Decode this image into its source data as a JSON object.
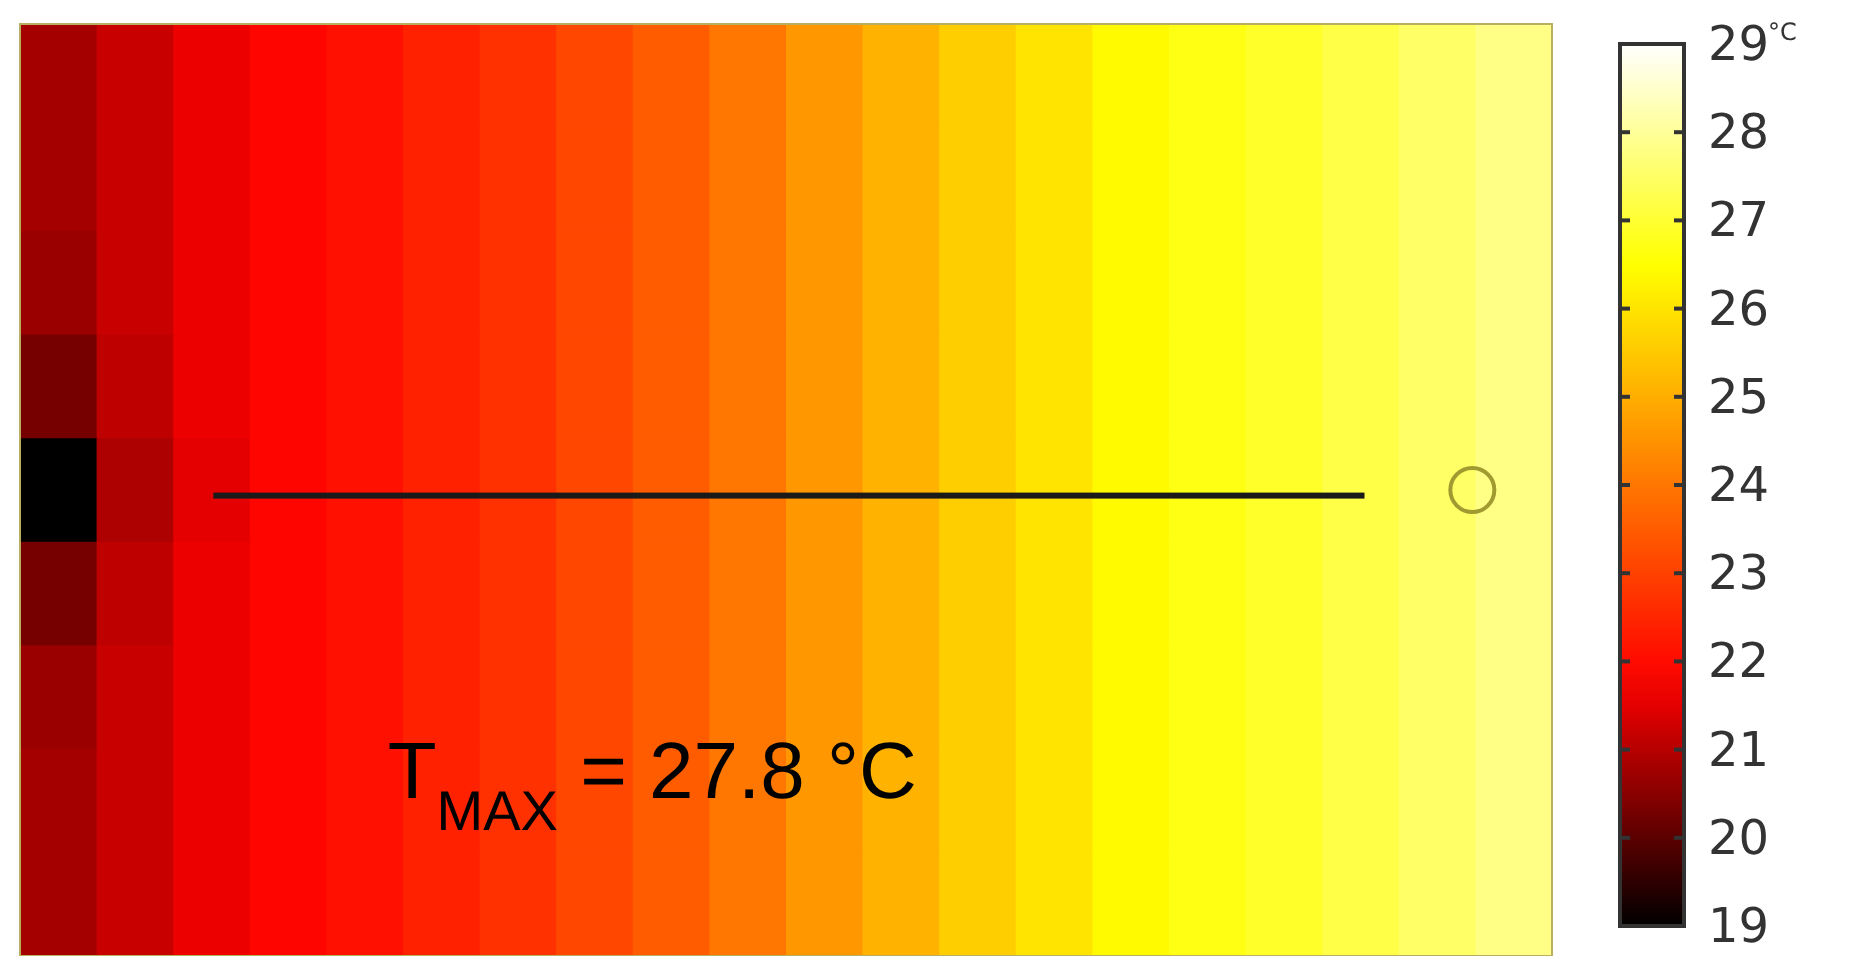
{
  "chart_data": {
    "type": "heatmap",
    "categories": [
      null,
      null,
      null,
      null,
      null,
      null,
      null,
      null,
      null,
      null,
      null,
      null,
      null,
      null,
      null,
      null,
      null,
      null,
      null,
      null
    ],
    "y_categories": [
      null,
      null,
      null,
      null,
      null,
      null,
      null,
      null,
      null
    ],
    "cells": [
      [
        20.8,
        21.2,
        21.6,
        21.9,
        22.1,
        22.4,
        22.7,
        23.1,
        23.5,
        24.0,
        24.6,
        25.1,
        25.6,
        26.0,
        26.4,
        26.7,
        26.9,
        27.2,
        27.5,
        27.8
      ],
      [
        20.8,
        21.2,
        21.6,
        21.9,
        22.1,
        22.4,
        22.7,
        23.1,
        23.5,
        24.0,
        24.6,
        25.1,
        25.6,
        26.0,
        26.4,
        26.7,
        26.9,
        27.2,
        27.5,
        27.8
      ],
      [
        20.7,
        21.2,
        21.6,
        21.9,
        22.1,
        22.4,
        22.7,
        23.1,
        23.5,
        24.0,
        24.6,
        25.1,
        25.6,
        26.0,
        26.4,
        26.7,
        26.9,
        27.2,
        27.5,
        27.8
      ],
      [
        20.3,
        21.1,
        21.6,
        21.9,
        22.1,
        22.4,
        22.7,
        23.1,
        23.5,
        24.0,
        24.6,
        25.1,
        25.6,
        26.0,
        26.4,
        26.7,
        26.9,
        27.2,
        27.5,
        27.8
      ],
      [
        19,
        20.9,
        21.5,
        21.9,
        22.1,
        22.4,
        22.7,
        23.1,
        23.5,
        24.0,
        24.6,
        25.1,
        25.6,
        26.0,
        26.4,
        26.7,
        26.9,
        27.2,
        27.5,
        27.8
      ],
      [
        20.3,
        21.1,
        21.6,
        21.9,
        22.1,
        22.4,
        22.7,
        23.1,
        23.5,
        24.0,
        24.6,
        25.1,
        25.6,
        26.0,
        26.4,
        26.7,
        26.9,
        27.2,
        27.5,
        27.8
      ],
      [
        20.7,
        21.2,
        21.6,
        21.9,
        22.1,
        22.4,
        22.7,
        23.1,
        23.5,
        24.0,
        24.6,
        25.1,
        25.6,
        26.0,
        26.4,
        26.7,
        26.9,
        27.2,
        27.5,
        27.8
      ],
      [
        20.8,
        21.2,
        21.6,
        21.9,
        22.1,
        22.4,
        22.7,
        23.1,
        23.5,
        24.0,
        24.6,
        25.1,
        25.6,
        26.0,
        26.4,
        26.7,
        26.9,
        27.2,
        27.5,
        27.8
      ],
      [
        20.8,
        21.2,
        21.6,
        21.9,
        22.1,
        22.4,
        22.7,
        23.1,
        23.5,
        24.0,
        24.6,
        25.1,
        25.6,
        26.0,
        26.4,
        26.7,
        26.9,
        27.2,
        27.5,
        27.8
      ]
    ],
    "clim": [
      19,
      29
    ],
    "cticks": [
      19,
      20,
      21,
      22,
      23,
      24,
      25,
      26,
      27,
      28,
      29
    ],
    "clabel": "°C",
    "annotations": [
      "T$_{MAX}$ = 27.8 °C"
    ]
  }
}
